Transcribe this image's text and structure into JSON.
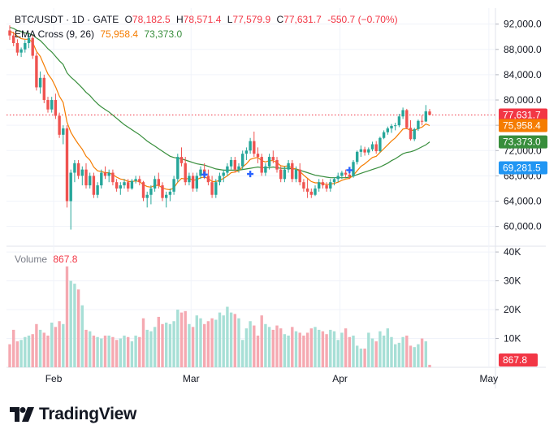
{
  "header": {
    "symbol": "BTC/USDT · 1D · GATE",
    "open_label": "O",
    "open": "78,182.5",
    "high_label": "H",
    "high": "78,571.4",
    "low_label": "L",
    "low": "77,579.9",
    "close_label": "C",
    "close": "77,631.7",
    "change": "-550.7 (−0.70%)"
  },
  "ema_legend": {
    "label": "EMA Cross (9, 26)",
    "fast": "75,958.4",
    "slow": "73,373.0"
  },
  "volume_legend": {
    "label": "Volume",
    "value": "867.8"
  },
  "brand": {
    "name": "TradingView"
  },
  "colors": {
    "up": "#26a69a",
    "down": "#ef5350",
    "up_vol": "#a7dfd6",
    "down_vol": "#f5a9b1",
    "ema_fast": "#f57c00",
    "ema_slow": "#388e3c",
    "last_price": "#f23645",
    "marker": "#2962ff"
  },
  "chart_data": [
    {
      "type": "candlestick",
      "title": "BTC/USDT · 1D · GATE",
      "x_ticks": [
        "Feb",
        "Mar",
        "Apr",
        "May"
      ],
      "y_ticks": [
        "60,000.0",
        "64,000.0",
        "68,000.0",
        "72,000.0",
        "76,000.0",
        "80,000.0",
        "84,000.0",
        "88,000.0",
        "92,000.0"
      ],
      "ylim": [
        57000,
        93500
      ],
      "ohlc": [
        [
          91000,
          91800,
          89500,
          90200
        ],
        [
          90200,
          90800,
          88500,
          89000
        ],
        [
          89000,
          89600,
          87000,
          87500
        ],
        [
          87500,
          88300,
          86800,
          88000
        ],
        [
          88000,
          89500,
          87500,
          89000
        ],
        [
          89000,
          90400,
          88200,
          89800
        ],
        [
          89800,
          90200,
          86500,
          87000
        ],
        [
          87000,
          87500,
          81500,
          82000
        ],
        [
          82000,
          84500,
          81000,
          83500
        ],
        [
          83500,
          84000,
          79500,
          80000
        ],
        [
          80000,
          80500,
          78000,
          78500
        ],
        [
          78500,
          80500,
          78000,
          80000
        ],
        [
          80000,
          81000,
          77000,
          77500
        ],
        [
          77500,
          78000,
          74000,
          74500
        ],
        [
          74500,
          76000,
          73000,
          75500
        ],
        [
          75500,
          76000,
          63000,
          64000
        ],
        [
          64000,
          69000,
          59500,
          68500
        ],
        [
          68500,
          70500,
          67000,
          70000
        ],
        [
          70000,
          70500,
          67500,
          68000
        ],
        [
          68000,
          69500,
          66500,
          69000
        ],
        [
          69000,
          70000,
          66000,
          66500
        ],
        [
          66500,
          68500,
          66000,
          68000
        ],
        [
          68000,
          68500,
          64500,
          65000
        ],
        [
          65000,
          67000,
          64500,
          66500
        ],
        [
          66500,
          69000,
          66000,
          68500
        ],
        [
          68500,
          69500,
          67500,
          68000
        ],
        [
          68000,
          69000,
          67000,
          68500
        ],
        [
          68500,
          69000,
          66500,
          67000
        ],
        [
          67000,
          67500,
          65500,
          66000
        ],
        [
          66000,
          67000,
          65000,
          66500
        ],
        [
          66500,
          67500,
          66000,
          67000
        ],
        [
          67000,
          67500,
          65500,
          66000
        ],
        [
          66000,
          67500,
          65800,
          67200
        ],
        [
          67200,
          68000,
          66800,
          67500
        ],
        [
          67500,
          68000,
          66500,
          67000
        ],
        [
          67000,
          67200,
          64000,
          64500
        ],
        [
          64500,
          65500,
          63000,
          65000
        ],
        [
          65000,
          66500,
          63500,
          66000
        ],
        [
          66000,
          68000,
          65500,
          67500
        ],
        [
          67500,
          68500,
          66000,
          66500
        ],
        [
          66500,
          67000,
          64000,
          64500
        ],
        [
          64500,
          65500,
          63000,
          65000
        ],
        [
          65000,
          66000,
          64000,
          65500
        ],
        [
          65500,
          68000,
          65000,
          67500
        ],
        [
          67500,
          71500,
          67000,
          71000
        ],
        [
          71000,
          72500,
          69500,
          70000
        ],
        [
          70000,
          71000,
          66500,
          67000
        ],
        [
          67000,
          68500,
          66500,
          68000
        ],
        [
          68000,
          68500,
          65500,
          66000
        ],
        [
          66000,
          68500,
          65500,
          68000
        ],
        [
          68000,
          69500,
          67500,
          69000
        ],
        [
          69000,
          70000,
          67500,
          68000
        ],
        [
          68000,
          69000,
          66500,
          67000
        ],
        [
          67000,
          68000,
          64500,
          65000
        ],
        [
          65000,
          67500,
          64500,
          67000
        ],
        [
          67000,
          68500,
          66500,
          68000
        ],
        [
          68000,
          69000,
          67000,
          68500
        ],
        [
          68500,
          70000,
          68000,
          69500
        ],
        [
          69500,
          71000,
          69000,
          70500
        ],
        [
          70500,
          71000,
          68500,
          69000
        ],
        [
          69000,
          70000,
          68500,
          69500
        ],
        [
          69500,
          72000,
          69000,
          71500
        ],
        [
          71500,
          72500,
          70500,
          72000
        ],
        [
          72000,
          74000,
          71500,
          73500
        ],
        [
          73500,
          75000,
          71000,
          71500
        ],
        [
          71500,
          72500,
          70000,
          71000
        ],
        [
          71000,
          71500,
          68000,
          68500
        ],
        [
          68500,
          70000,
          68000,
          69500
        ],
        [
          69500,
          71500,
          69000,
          71000
        ],
        [
          71000,
          72000,
          70000,
          70500
        ],
        [
          70500,
          71000,
          68500,
          69000
        ],
        [
          69000,
          69500,
          67000,
          67500
        ],
        [
          67500,
          69500,
          67000,
          69000
        ],
        [
          69000,
          70500,
          68500,
          70000
        ],
        [
          70000,
          70500,
          67000,
          67500
        ],
        [
          67500,
          69500,
          67000,
          69000
        ],
        [
          69000,
          70000,
          66500,
          67000
        ],
        [
          67000,
          67500,
          65500,
          66000
        ],
        [
          66000,
          67500,
          64500,
          65500
        ],
        [
          65500,
          66000,
          64500,
          65000
        ],
        [
          65000,
          66500,
          64800,
          66000
        ],
        [
          66000,
          67500,
          65500,
          67000
        ],
        [
          67000,
          67500,
          66000,
          66500
        ],
        [
          66500,
          67000,
          65500,
          66000
        ],
        [
          66000,
          67500,
          65500,
          67000
        ],
        [
          67000,
          67800,
          66500,
          67500
        ],
        [
          67500,
          68500,
          67000,
          68000
        ],
        [
          68000,
          68800,
          67500,
          68500
        ],
        [
          68500,
          69000,
          67800,
          68200
        ],
        [
          68200,
          68600,
          67500,
          67900
        ],
        [
          67900,
          70500,
          67700,
          70200
        ],
        [
          70200,
          72000,
          69800,
          71800
        ],
        [
          71800,
          72800,
          71000,
          72200
        ],
        [
          72200,
          72600,
          71200,
          71700
        ],
        [
          71700,
          72500,
          71300,
          72200
        ],
        [
          72200,
          73400,
          71900,
          73000
        ],
        [
          73000,
          73500,
          71500,
          71900
        ],
        [
          71900,
          74200,
          71700,
          74000
        ],
        [
          74000,
          75200,
          73800,
          74900
        ],
        [
          74900,
          75800,
          74500,
          75500
        ],
        [
          75500,
          76200,
          74800,
          75900
        ],
        [
          75900,
          76400,
          75200,
          76000
        ],
        [
          76000,
          77800,
          75700,
          77400
        ],
        [
          77400,
          78800,
          77000,
          78400
        ],
        [
          78400,
          78600,
          75400,
          75600
        ],
        [
          75600,
          76800,
          73600,
          73800
        ],
        [
          73800,
          75600,
          73500,
          75400
        ],
        [
          75400,
          76900,
          75100,
          76700
        ],
        [
          76700,
          77600,
          76000,
          76600
        ],
        [
          76600,
          79200,
          76500,
          78200
        ],
        [
          78182.5,
          78571.4,
          77579.9,
          77631.7
        ]
      ],
      "ema_fast": [
        90900,
        90600,
        90100,
        89700,
        89600,
        89600,
        89100,
        87700,
        86900,
        85500,
        84100,
        83300,
        82100,
        80600,
        79600,
        76500,
        74900,
        73900,
        73000,
        72200,
        71100,
        70500,
        69400,
        68800,
        68700,
        68500,
        68500,
        68200,
        67800,
        67500,
        67400,
        67100,
        67100,
        67200,
        67100,
        66600,
        66300,
        66200,
        66500,
        66500,
        66100,
        65900,
        65800,
        66100,
        67000,
        67600,
        67500,
        67600,
        67300,
        67400,
        67700,
        67800,
        67600,
        67100,
        67100,
        67300,
        67600,
        68000,
        68500,
        68600,
        68800,
        69400,
        69900,
        70600,
        70800,
        70900,
        70400,
        70200,
        70400,
        70400,
        70100,
        69600,
        69500,
        69600,
        69200,
        69100,
        68700,
        68100,
        67600,
        67100,
        66900,
        66900,
        66800,
        66600,
        66700,
        66800,
        67000,
        67300,
        67500,
        67600,
        68100,
        68800,
        69500,
        69900,
        70400,
        70900,
        71100,
        71700,
        72300,
        72900,
        73500,
        74000,
        74700,
        75400,
        75500,
        75200,
        75200,
        75500,
        75700,
        76200,
        75958.4
      ],
      "ema_slow": [
        91500,
        91300,
        91000,
        90800,
        90600,
        90500,
        90300,
        89800,
        89400,
        88800,
        88100,
        87600,
        86900,
        86200,
        85600,
        84300,
        83600,
        83100,
        82500,
        81900,
        81200,
        80700,
        80000,
        79400,
        78900,
        78500,
        78100,
        77600,
        77100,
        76600,
        76100,
        75700,
        75300,
        74900,
        74500,
        74000,
        73500,
        73100,
        72700,
        72300,
        71900,
        71500,
        71100,
        70900,
        70800,
        70700,
        70500,
        70300,
        70100,
        69900,
        69800,
        69700,
        69500,
        69300,
        69100,
        69000,
        68900,
        68900,
        68900,
        68900,
        68900,
        69000,
        69100,
        69200,
        69300,
        69400,
        69300,
        69300,
        69300,
        69400,
        69300,
        69200,
        69200,
        69200,
        69100,
        69100,
        68900,
        68700,
        68500,
        68300,
        68100,
        68000,
        67900,
        67800,
        67700,
        67700,
        67700,
        67700,
        67700,
        67800,
        68000,
        68200,
        68400,
        68600,
        68800,
        69000,
        69200,
        69400,
        69700,
        70000,
        70400,
        70700,
        71100,
        71500,
        71700,
        71800,
        72000,
        72300,
        72600,
        72900,
        73373.0
      ],
      "markers": [
        {
          "index": 51,
          "price": 68200
        },
        {
          "index": 63,
          "price": 68300
        },
        {
          "index": 89,
          "price": 68900
        }
      ],
      "last_price": "77,631.7",
      "price_labels": [
        {
          "text": "77,631.7",
          "value": 77631.7,
          "color": "#f23645"
        },
        {
          "text": "75,958.4",
          "value": 75958.4,
          "color": "#f57c00"
        },
        {
          "text": "73,373.0",
          "value": 73373.0,
          "color": "#388e3c"
        },
        {
          "text": "69,281.5",
          "value": 69281.5,
          "color": "#2196f3"
        }
      ]
    },
    {
      "type": "bar",
      "title": "Volume",
      "y_ticks": [
        "10K",
        "20K",
        "30K",
        "40K"
      ],
      "ylim": [
        0,
        42000
      ],
      "last_value": "867.8",
      "values": [
        8000,
        13000,
        9000,
        9500,
        10500,
        11000,
        11500,
        15000,
        13000,
        12000,
        11000,
        15500,
        14000,
        16000,
        15000,
        35000,
        30000,
        29000,
        27000,
        21500,
        13000,
        12500,
        11000,
        10500,
        10000,
        11000,
        11000,
        10500,
        9500,
        10000,
        11000,
        10500,
        9000,
        11000,
        10500,
        17000,
        13000,
        12500,
        14000,
        17500,
        15000,
        15500,
        15000,
        16000,
        20000,
        19000,
        19500,
        15000,
        14000,
        18000,
        17000,
        15000,
        16000,
        17000,
        16500,
        19000,
        18000,
        21000,
        19000,
        18500,
        17000,
        9500,
        13500,
        16000,
        14500,
        11000,
        18000,
        15000,
        14000,
        13000,
        14500,
        13500,
        11500,
        11000,
        14000,
        12500,
        12000,
        11000,
        12000,
        13500,
        14000,
        13000,
        12500,
        11500,
        13000,
        12500,
        9500,
        12000,
        13500,
        10500,
        11000,
        7500,
        6500,
        6500,
        12000,
        10000,
        9000,
        12500,
        11000,
        13500,
        10500,
        8000,
        8500,
        10500,
        11000,
        7500,
        7000,
        8000,
        10000,
        9000,
        867.8
      ]
    }
  ]
}
